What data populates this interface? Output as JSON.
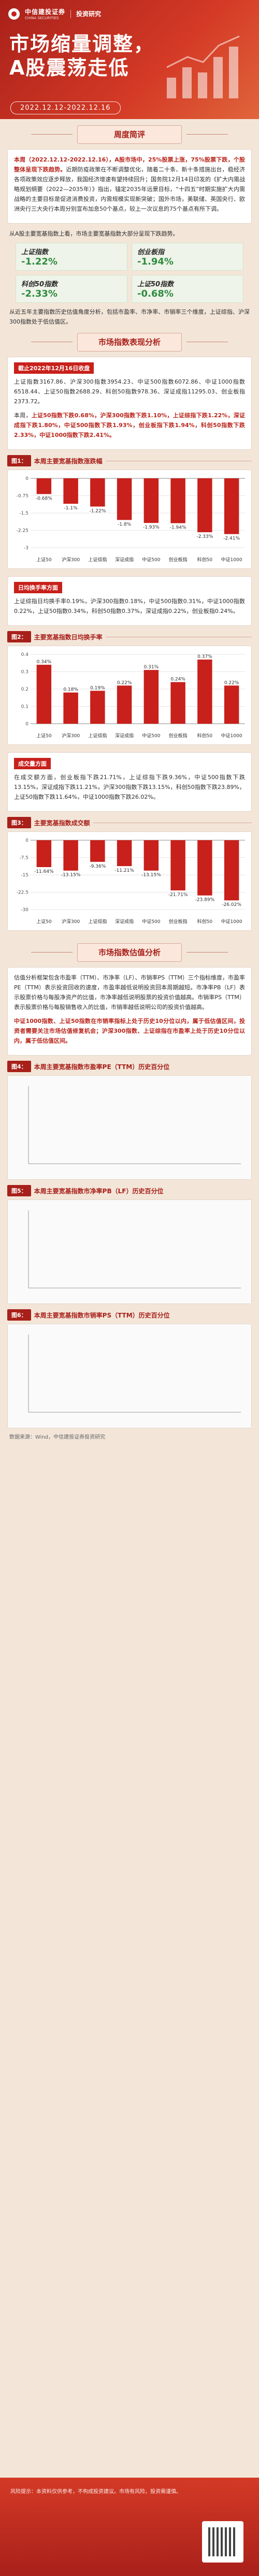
{
  "header": {
    "logo_main": "中信建投证券",
    "logo_sub": "CHINA SECURITIES",
    "logo_right": "投资研究",
    "title_line1": "市场缩量调整，",
    "title_line2": "A股震荡走低",
    "date_range": "2022.12.12-2022.12.16"
  },
  "sections": {
    "weekly": "周度简评",
    "performance": "市场指数表现分析",
    "valuation": "市场指数估值分析"
  },
  "weekly": {
    "p1_a": "本周（2022.12.12-2022.12.16），A股市场中，",
    "p1_b": "25%股票上涨，75%股票下跌，个股整体呈现下跌趋势。",
    "p1_c": "近期防疫政策在不断调整优化，随着二十条、新十条措施出台，稳经济各项政策效应逐步释放，我国经济增速有望持续回升；国务院12月14日印发的《扩大内需战略规划纲要（2022—2035年）》指出，锚定2035年远景目标，“十四五”时期实施扩大内需战略的主要目标是促进消费投资，内需规模实现新突破；国外市场，美联储、英国央行、欧洲央行三大央行本周分别宣布加息50个基点，较上一次议息的75个基点有所下调。",
    "p2": "从A股主要宽基指数上看，市场主要宽基指数大部分呈现下跌趋势。",
    "tiles": [
      {
        "name": "上证指数",
        "value": "-1.22%"
      },
      {
        "name": "创业板指",
        "value": "-1.94%"
      },
      {
        "name": "科创50指数",
        "value": "-2.33%"
      },
      {
        "name": "上证50指数",
        "value": "-0.68%"
      }
    ],
    "p3": "从近五年主要指数历史估值角度分析，包括市盈率、市净率、市销率三个维度，上证综指、沪深300指数处于低估值区。"
  },
  "performance": {
    "date_tag": "截止2022年12月16日收盘",
    "p1": "上证指数3167.86、沪深300指数3954.23、中证500指数6072.86、中证1000指数6518.44、上证50指数2688.29、科创50指数978.36、深证成指11295.03、创业板指2373.72。",
    "p2_a": "本周，",
    "p2_b": "上证50指数下跌0.68%，沪深300指数下跌1.10%，上证综指下跌1.22%，深证成指下跌1.80%，中证500指数下跌1.93%，创业板指下跌1.94%，科创50指数下跌2.33%，中证1000指数下跌2.41%。",
    "fig1_tag": "图1：",
    "fig1_title": "本周主要宽基指数涨跌幅",
    "chart_data": [
      {
        "type": "bar",
        "categories": [
          "上证50",
          "沪深300",
          "上证综指",
          "深证成指",
          "中证500",
          "创业板指",
          "科创50",
          "中证1000"
        ],
        "values": [
          -0.68,
          -1.1,
          -1.22,
          -1.8,
          -1.93,
          -1.94,
          -2.33,
          -2.41
        ],
        "ylim": [
          -3,
          0
        ]
      },
      {
        "type": "bar",
        "categories": [
          "上证50",
          "沪深300",
          "上证综指",
          "深证成指",
          "中证500",
          "创业板指",
          "科创50",
          "中证1000"
        ],
        "values": [
          0.34,
          0.18,
          0.19,
          0.22,
          0.31,
          0.24,
          0.37,
          0.22
        ],
        "ylim": [
          0,
          0.4
        ]
      },
      {
        "type": "bar",
        "categories": [
          "上证50",
          "沪深300",
          "上证综指",
          "深证成指",
          "中证500",
          "创业板指",
          "科创50",
          "中证1000"
        ],
        "values": [
          -11.64,
          -13.15,
          -9.36,
          -11.21,
          -13.15,
          -21.71,
          -23.89,
          -26.02
        ],
        "ylim": [
          -30,
          0
        ]
      }
    ]
  },
  "turnover": {
    "tag": "日均换手率方面",
    "p": "上证综指日均换手率0.19%，沪深300指数0.18%，中证500指数0.31%，中证1000指数0.22%，上证50指数0.34%，科创50指数0.37%，深证成指0.22%，创业板指0.24%。",
    "fig2_tag": "图2：",
    "fig2_title": "主要宽基指数日均换手率"
  },
  "volume": {
    "tag": "成交量方面",
    "p": "在成交额方面，创业板指下跌21.71%，上证综指下跌9.36%，中证500指数下跌13.15%，深证成指下跌11.21%，沪深300指数下跌13.15%，科创50指数下跌23.89%，上证50指数下跌11.64%，中证1000指数下跌26.02%。",
    "fig3_tag": "图3：",
    "fig3_title": "主要宽基指数成交额"
  },
  "valuation": {
    "p1": "估值分析框架包含市盈率（TTM）、市净率（LF）、市销率PS（TTM）三个指标维度，市盈率PE（TTM）表示投资回收的速度，市盈率越低说明投资回本周期越短。市净率PB（LF）表示股票价格与每股净资产的比值，市净率越低说明股票的投资价值越高。市销率PS（TTM）表示股票价格与每股销售收入的比值，市销率越低说明公司的投资价值越高。",
    "p2_a": "中证1000指数、上证50指数在市销率指标上处于历史10分位以内，属于低估值区间，投资者需要关注市场估值修复机会；",
    "p2_b": "沪深300指数、上证综指在市盈率上处于历史10分位以内，属于低估值区间。",
    "fig4_tag": "图4：",
    "fig4_title": "本周主要宽基指数市盈率PE（TTM）历史百分位",
    "fig5_tag": "图5：",
    "fig5_title": "本周主要宽基指数市净率PB（LF）历史百分位",
    "fig6_tag": "图6：",
    "fig6_title": "本周主要宽基指数市销率PS（TTM）历史百分位"
  },
  "source": "数据来源：Wind，中信建投证券投资研究",
  "footer": "风险提示：本资料仅供参考，不构成投资建议。市场有风险，投资需谨慎。",
  "colors": {
    "accent": "#a8201a",
    "down": "#2e8b3f",
    "bar": "#c8201b"
  }
}
